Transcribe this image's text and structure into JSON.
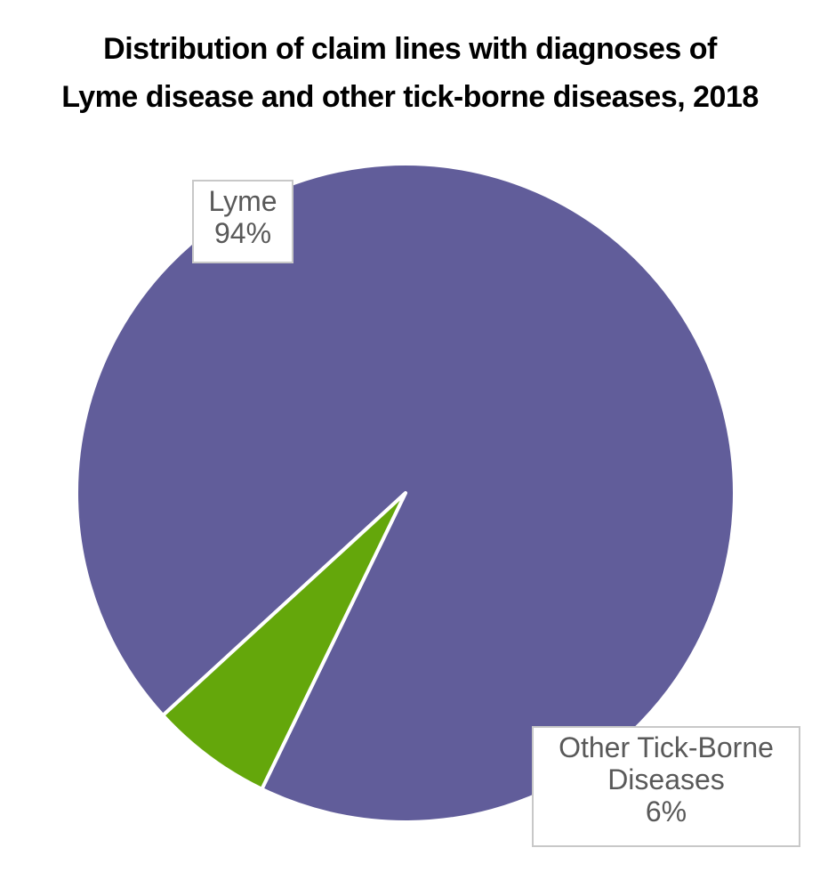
{
  "title": {
    "line1": "Distribution of claim lines with diagnoses of",
    "line2": "Lyme disease and other tick-borne diseases, 2018"
  },
  "colors": {
    "lyme": "#615d9a",
    "other": "#64a70b",
    "separator": "#ffffff"
  },
  "chart_data": {
    "type": "pie",
    "title": "Distribution of claim lines with diagnoses of Lyme disease and other tick-borne diseases, 2018",
    "slices": [
      {
        "name": "Lyme",
        "value": 94,
        "label": "94%"
      },
      {
        "name": "Other Tick-Borne Diseases",
        "value": 6,
        "label": "6%"
      }
    ]
  },
  "labels": {
    "lyme": {
      "line1": "Lyme",
      "line2": "94%"
    },
    "other": {
      "line1": "Other Tick-Borne",
      "line2": "Diseases",
      "line3": "6%"
    }
  }
}
